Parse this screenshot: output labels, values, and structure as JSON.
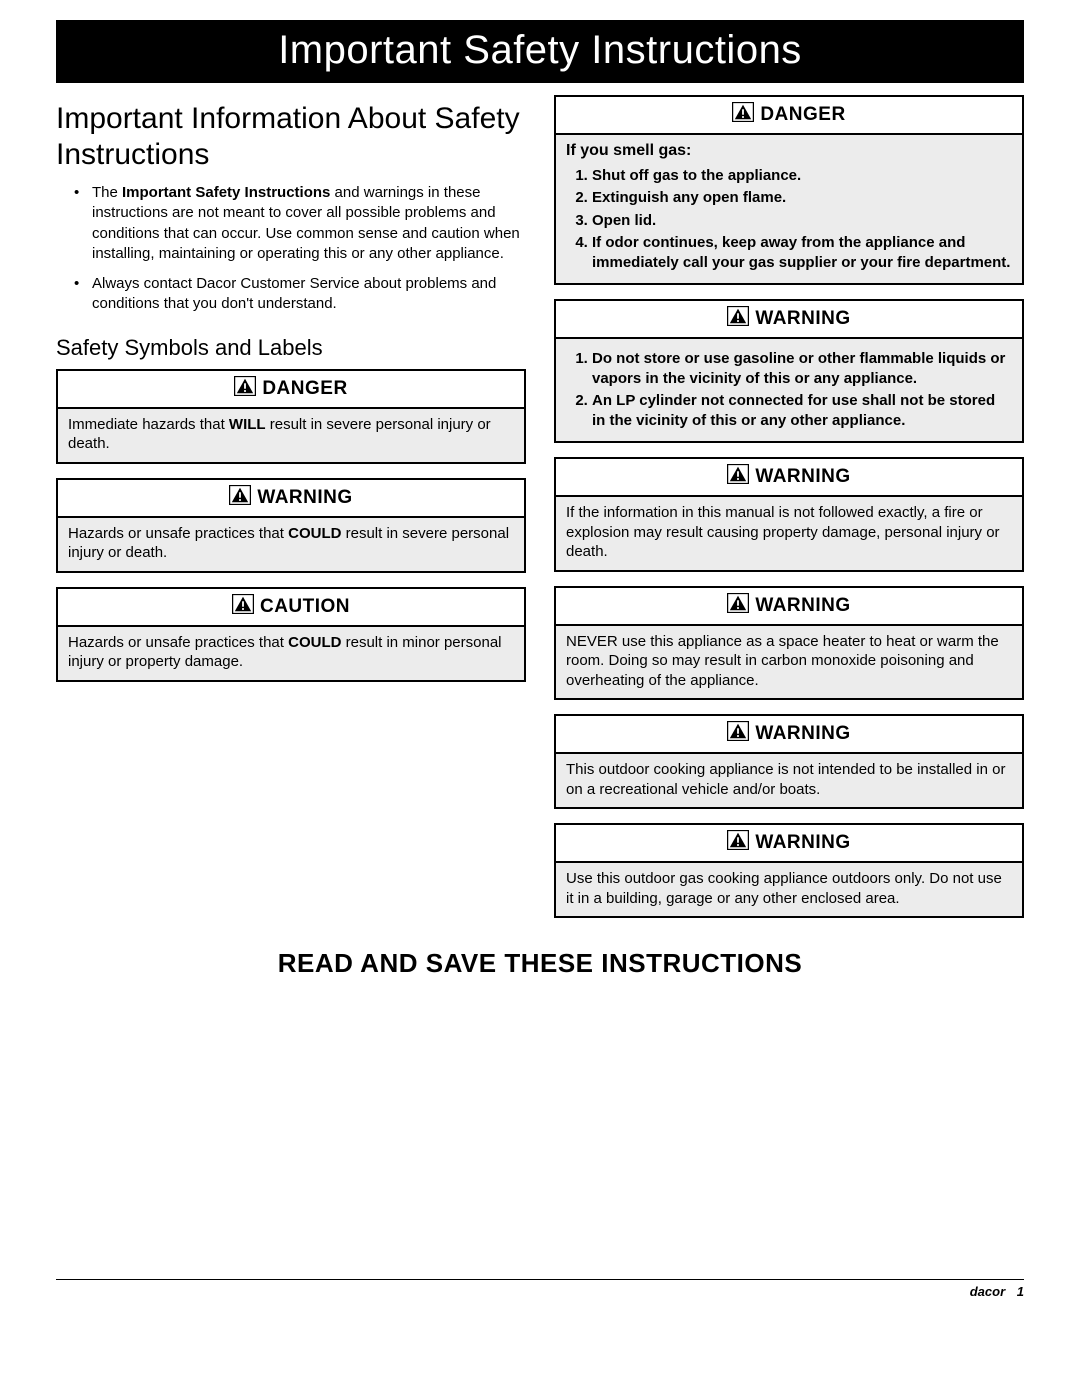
{
  "banner": "Important Safety Instructions",
  "left": {
    "title": "Important Information About Safety Instructions",
    "bullets": [
      {
        "pre": "The ",
        "bold": "Important Safety Instructions",
        "post": " and warnings in these instructions are not meant to cover all possible problems and conditions that can occur. Use common sense and caution when installing, maintaining or operating this or any other appliance."
      },
      {
        "pre": "",
        "bold": "",
        "post": "Always contact Dacor Customer Service about problems and conditions that you don't understand."
      }
    ],
    "symbols_title": "Safety Symbols and Labels",
    "boxes": [
      {
        "label": "DANGER",
        "pre": "Immediate hazards that ",
        "bold": "WILL",
        "post": " result in severe personal injury or death."
      },
      {
        "label": "WARNING",
        "pre": "Hazards or unsafe practices that ",
        "bold": "COULD",
        "post": " result in severe personal injury or death."
      },
      {
        "label": "CAUTION",
        "pre": "Hazards or unsafe practices that ",
        "bold": "COULD",
        "post": " result in minor personal injury or property damage."
      }
    ]
  },
  "right": {
    "boxes": [
      {
        "label": "DANGER",
        "subhead": "If you smell gas:",
        "list": [
          "Shut off gas to the appliance.",
          "Extinguish any open flame.",
          "Open lid.",
          "If odor continues, keep away from the appliance and immediately call your gas supplier or your fire department."
        ],
        "list_bold": true
      },
      {
        "label": "WARNING",
        "list": [
          "Do not store or use gasoline or other flammable liquids or vapors in the vicinity of this or any appliance.",
          "An LP cylinder not connected for use shall not be stored in the vicinity of this or any other appliance."
        ],
        "list_bold": true
      },
      {
        "label": "WARNING",
        "text": "If the information in this manual is not followed exactly, a fire or explosion may result causing property damage, personal injury or death."
      },
      {
        "label": "WARNING",
        "text": "NEVER use this appliance as a space heater to heat or warm the room. Doing so may result in carbon monoxide poisoning and overheating of the appliance."
      },
      {
        "label": "WARNING",
        "text": "This outdoor cooking appliance is not intended to be installed in or on a recreational vehicle and/or boats."
      },
      {
        "label": "WARNING",
        "text": "Use this outdoor gas cooking appliance outdoors only. Do not use it in a building, garage or any other enclosed area."
      }
    ]
  },
  "footer_instruction": "READ AND SAVE THESE INSTRUCTIONS",
  "brand": "dacor",
  "page_number": "1",
  "colors": {
    "banner_bg": "#000000",
    "banner_fg": "#ffffff",
    "alert_body_bg": "#ececec",
    "border": "#000000"
  }
}
